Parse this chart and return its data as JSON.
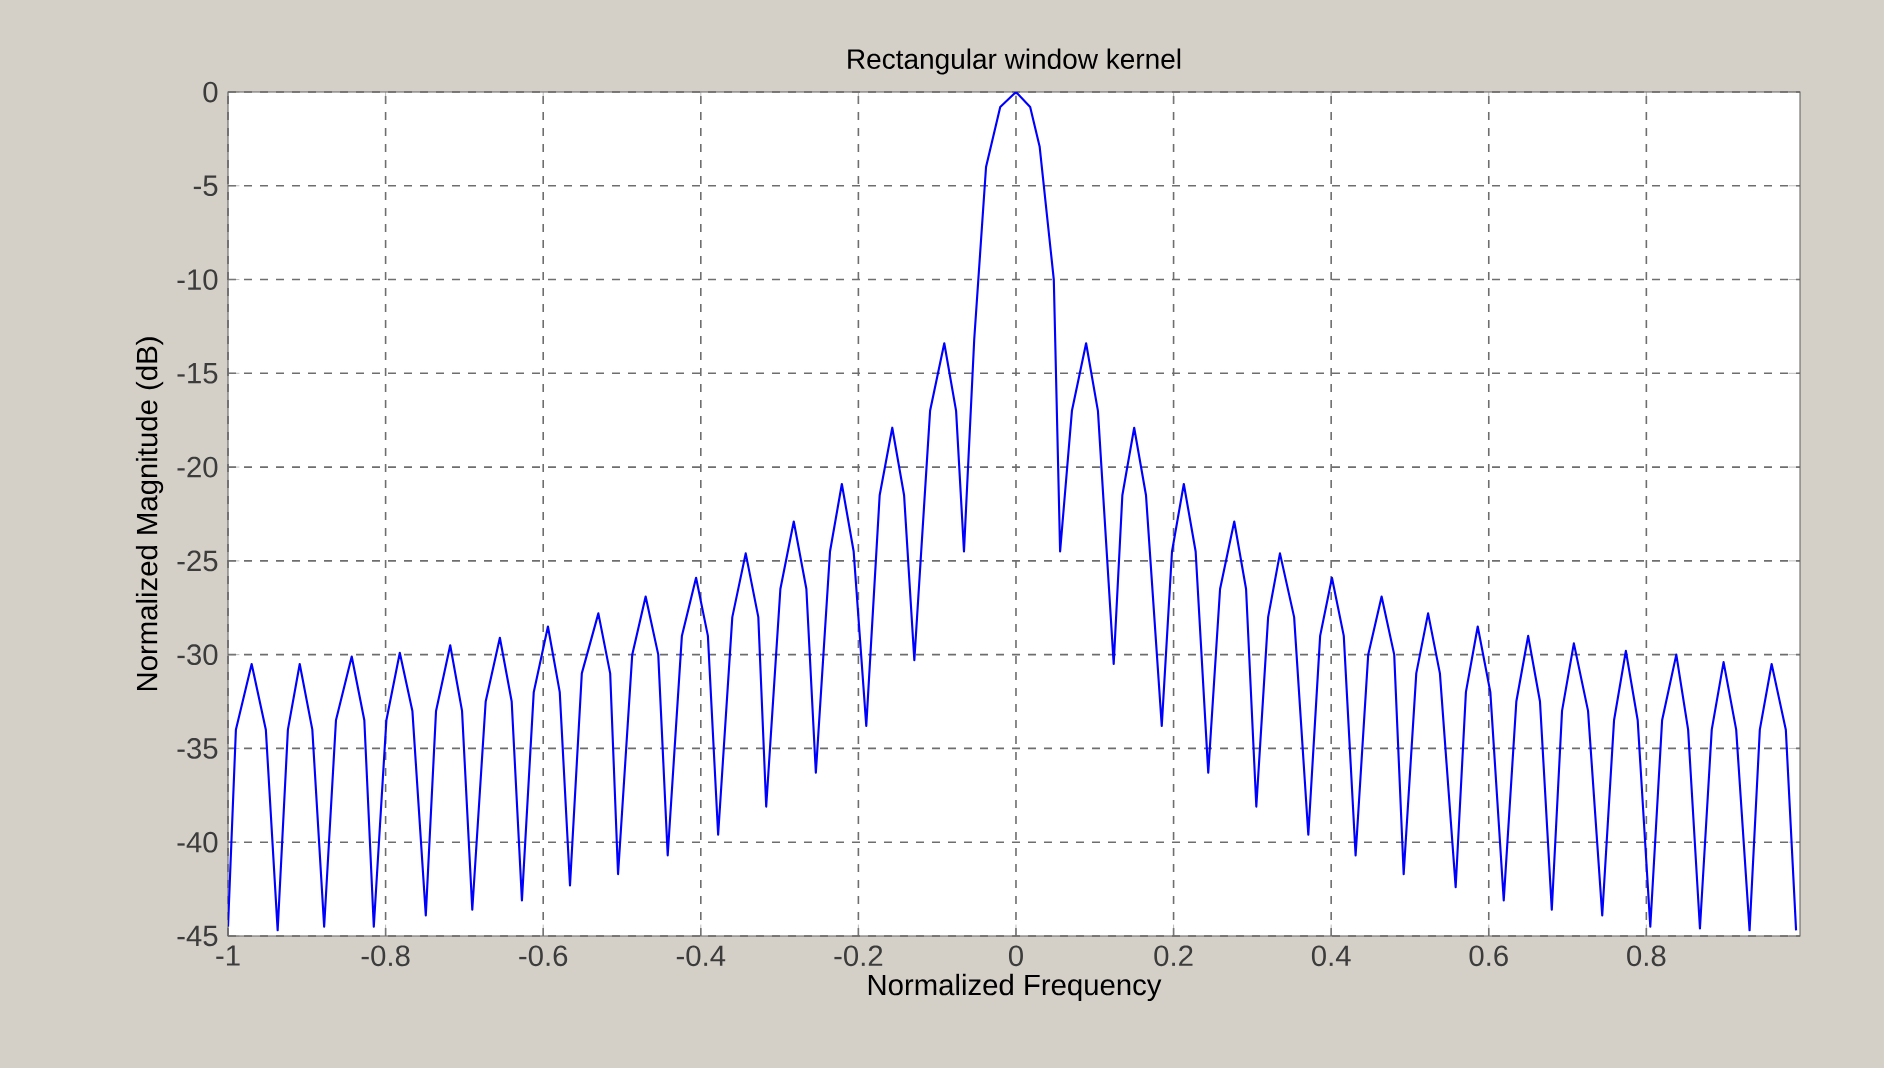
{
  "chart_data": {
    "type": "line",
    "title": "Rectangular window kernel",
    "xlabel": "Normalized Frequency",
    "ylabel": "Normalized  Magnitude (dB)",
    "x": [
      -1.0,
      -0.99,
      -0.97,
      -0.952,
      -0.937,
      -0.924,
      -0.909,
      -0.893,
      -0.878,
      -0.863,
      -0.843,
      -0.827,
      -0.815,
      -0.799,
      -0.782,
      -0.766,
      -0.749,
      -0.736,
      -0.718,
      -0.703,
      -0.69,
      -0.673,
      -0.655,
      -0.64,
      -0.627,
      -0.612,
      -0.594,
      -0.579,
      -0.566,
      -0.551,
      -0.53,
      -0.515,
      -0.505,
      -0.487,
      -0.47,
      -0.454,
      -0.442,
      -0.424,
      -0.406,
      -0.391,
      -0.378,
      -0.36,
      -0.343,
      -0.327,
      -0.317,
      -0.299,
      -0.282,
      -0.266,
      -0.254,
      -0.236,
      -0.221,
      -0.206,
      -0.19,
      -0.173,
      -0.157,
      -0.142,
      -0.129,
      -0.109,
      -0.091,
      -0.076,
      -0.066,
      -0.053,
      -0.038,
      -0.02,
      0,
      0.018,
      0.03,
      0.048,
      0.056,
      0.071,
      0.089,
      0.104,
      0.124,
      0.135,
      0.15,
      0.165,
      0.185,
      0.198,
      0.213,
      0.228,
      0.244,
      0.259,
      0.277,
      0.292,
      0.305,
      0.32,
      0.335,
      0.353,
      0.371,
      0.386,
      0.401,
      0.416,
      0.431,
      0.447,
      0.464,
      0.48,
      0.492,
      0.508,
      0.523,
      0.538,
      0.558,
      0.571,
      0.586,
      0.602,
      0.619,
      0.635,
      0.65,
      0.665,
      0.68,
      0.693,
      0.708,
      0.726,
      0.744,
      0.759,
      0.774,
      0.789,
      0.805,
      0.82,
      0.838,
      0.853,
      0.868,
      0.883,
      0.898,
      0.914,
      0.931,
      0.944,
      0.959,
      0.977,
      0.99
    ],
    "series": [
      {
        "color": "#0000ff",
        "values": [
          -44.5,
          -34,
          -30.5,
          -34,
          -44.7,
          -34,
          -30.5,
          -34,
          -44.5,
          -33.5,
          -30.1,
          -33.5,
          -44.5,
          -33.5,
          -29.9,
          -33,
          -43.9,
          -33,
          -29.5,
          -33,
          -43.6,
          -32.5,
          -29.1,
          -32.5,
          -43.1,
          -32,
          -28.5,
          -32,
          -42.3,
          -31,
          -27.8,
          -31,
          -41.7,
          -30,
          -26.9,
          -30,
          -40.7,
          -29,
          -25.9,
          -29,
          -39.6,
          -28,
          -24.6,
          -28,
          -38.1,
          -26.5,
          -22.9,
          -26.5,
          -36.3,
          -24.5,
          -20.9,
          -24.5,
          -33.8,
          -21.5,
          -17.9,
          -21.5,
          -30.3,
          -17,
          -13.4,
          -17,
          -24.5,
          -13.2,
          -4,
          -0.8,
          0,
          -0.8,
          -2.9,
          -10,
          -24.5,
          -17,
          -13.4,
          -17,
          -30.5,
          -21.5,
          -17.9,
          -21.5,
          -33.8,
          -24.5,
          -20.9,
          -24.5,
          -36.3,
          -26.5,
          -22.9,
          -26.5,
          -38.1,
          -28,
          -24.6,
          -28,
          -39.6,
          -29,
          -25.9,
          -29,
          -40.7,
          -30,
          -26.9,
          -30,
          -41.7,
          -31,
          -27.8,
          -31,
          -42.4,
          -32,
          -28.5,
          -32,
          -43.1,
          -32.5,
          -29.0,
          -32.5,
          -43.6,
          -33,
          -29.4,
          -33,
          -43.9,
          -33.5,
          -29.8,
          -33.5,
          -44.5,
          -33.5,
          -30.0,
          -34,
          -44.6,
          -34,
          -30.4,
          -34,
          -44.7,
          -34,
          -30.5,
          -34,
          -44.7
        ]
      }
    ],
    "xlim": [
      -1,
      0.995
    ],
    "ylim": [
      -45,
      0
    ],
    "xticks": [
      -1,
      -0.8,
      -0.6,
      -0.4,
      -0.2,
      0,
      0.2,
      0.4,
      0.6,
      0.8
    ],
    "yticks": [
      -45,
      -40,
      -35,
      -30,
      -25,
      -20,
      -15,
      -10,
      -5,
      0
    ],
    "grid": true,
    "line_style": "solid"
  }
}
